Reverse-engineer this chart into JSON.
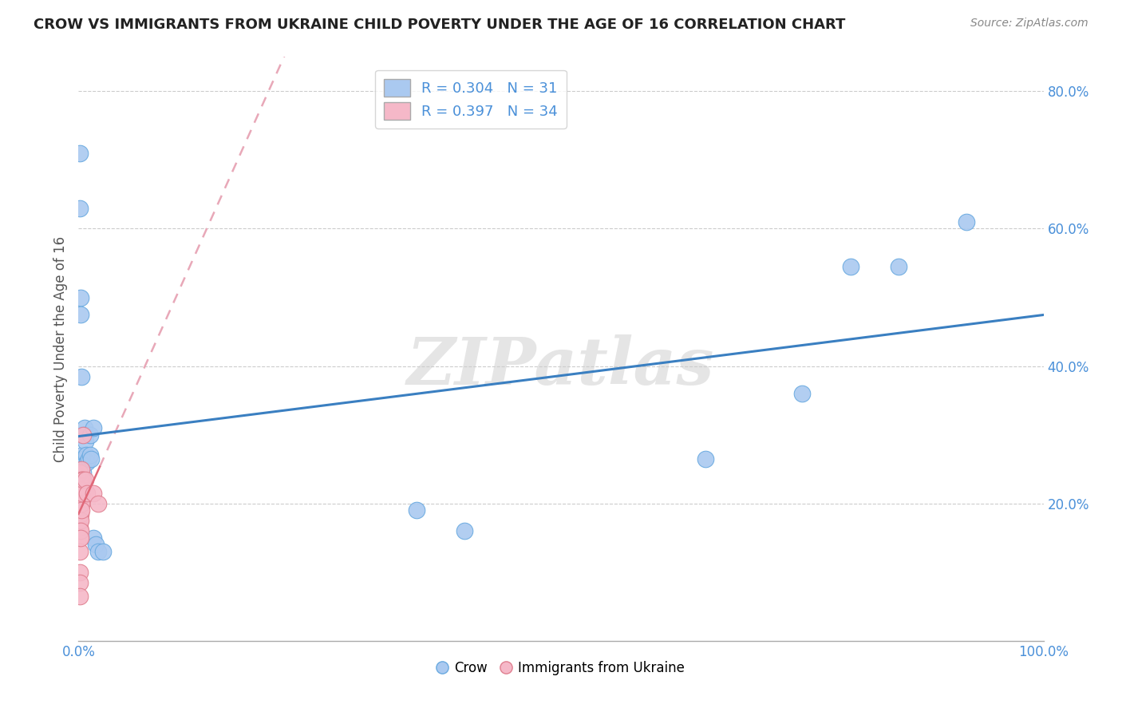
{
  "title": "CROW VS IMMIGRANTS FROM UKRAINE CHILD POVERTY UNDER THE AGE OF 16 CORRELATION CHART",
  "source": "Source: ZipAtlas.com",
  "ylabel": "Child Poverty Under the Age of 16",
  "xlim": [
    0,
    1.0
  ],
  "ylim": [
    0,
    0.85
  ],
  "xtick_values": [
    0,
    0.1,
    0.2,
    0.3,
    0.4,
    0.5,
    0.6,
    0.7,
    0.8,
    0.9,
    1.0
  ],
  "ytick_values": [
    0.2,
    0.4,
    0.6,
    0.8
  ],
  "crow_color": "#aac9f0",
  "crow_edge_color": "#6aaae0",
  "crow_line_color": "#3a7fc1",
  "ukraine_color": "#f5b8c8",
  "ukraine_edge_color": "#e08090",
  "ukraine_line_color": "#e06878",
  "ukraine_dash_color": "#e8a8b8",
  "crow_R": 0.304,
  "crow_N": 31,
  "ukraine_R": 0.397,
  "ukraine_N": 34,
  "watermark": "ZIPatlas",
  "crow_points": [
    [
      0.001,
      0.71
    ],
    [
      0.001,
      0.63
    ],
    [
      0.002,
      0.5
    ],
    [
      0.002,
      0.475
    ],
    [
      0.003,
      0.385
    ],
    [
      0.003,
      0.3
    ],
    [
      0.004,
      0.27
    ],
    [
      0.004,
      0.265
    ],
    [
      0.005,
      0.255
    ],
    [
      0.005,
      0.245
    ],
    [
      0.006,
      0.31
    ],
    [
      0.006,
      0.3
    ],
    [
      0.007,
      0.29
    ],
    [
      0.008,
      0.27
    ],
    [
      0.009,
      0.26
    ],
    [
      0.01,
      0.265
    ],
    [
      0.012,
      0.3
    ],
    [
      0.012,
      0.27
    ],
    [
      0.013,
      0.265
    ],
    [
      0.015,
      0.31
    ],
    [
      0.015,
      0.15
    ],
    [
      0.018,
      0.14
    ],
    [
      0.02,
      0.13
    ],
    [
      0.025,
      0.13
    ],
    [
      0.35,
      0.19
    ],
    [
      0.4,
      0.16
    ],
    [
      0.65,
      0.265
    ],
    [
      0.75,
      0.36
    ],
    [
      0.8,
      0.545
    ],
    [
      0.85,
      0.545
    ],
    [
      0.92,
      0.61
    ]
  ],
  "ukraine_points": [
    [
      0.001,
      0.245
    ],
    [
      0.001,
      0.235
    ],
    [
      0.001,
      0.22
    ],
    [
      0.001,
      0.21
    ],
    [
      0.001,
      0.2
    ],
    [
      0.001,
      0.185
    ],
    [
      0.001,
      0.175
    ],
    [
      0.001,
      0.165
    ],
    [
      0.001,
      0.15
    ],
    [
      0.001,
      0.13
    ],
    [
      0.001,
      0.1
    ],
    [
      0.001,
      0.085
    ],
    [
      0.001,
      0.065
    ],
    [
      0.002,
      0.235
    ],
    [
      0.002,
      0.22
    ],
    [
      0.002,
      0.21
    ],
    [
      0.002,
      0.195
    ],
    [
      0.002,
      0.185
    ],
    [
      0.002,
      0.175
    ],
    [
      0.002,
      0.16
    ],
    [
      0.002,
      0.15
    ],
    [
      0.003,
      0.25
    ],
    [
      0.003,
      0.235
    ],
    [
      0.003,
      0.215
    ],
    [
      0.003,
      0.2
    ],
    [
      0.003,
      0.19
    ],
    [
      0.004,
      0.235
    ],
    [
      0.004,
      0.215
    ],
    [
      0.005,
      0.3
    ],
    [
      0.005,
      0.235
    ],
    [
      0.007,
      0.235
    ],
    [
      0.009,
      0.215
    ],
    [
      0.015,
      0.215
    ],
    [
      0.02,
      0.2
    ]
  ]
}
